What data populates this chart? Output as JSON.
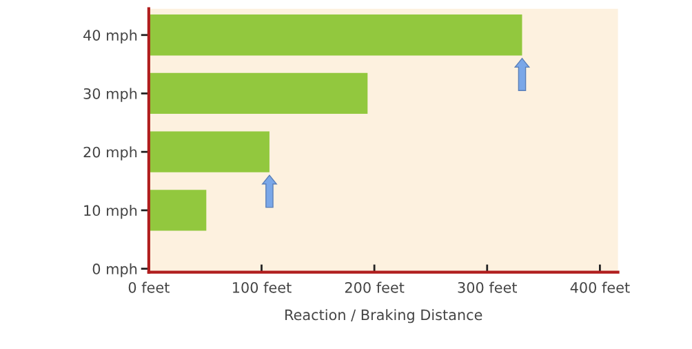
{
  "chart_data": {
    "type": "bar",
    "orientation": "horizontal",
    "xlabel": "Reaction / Braking Distance",
    "categories": [
      "40 mph",
      "30 mph",
      "20 mph",
      "10 mph",
      "0 mph"
    ],
    "values": [
      331,
      194,
      107,
      51,
      0
    ],
    "color": "#92c83e",
    "xlim": [
      0,
      416
    ],
    "xticks": [
      {
        "value": 0,
        "label": "0 feet"
      },
      {
        "value": 100,
        "label": "100 feet"
      },
      {
        "value": 200,
        "label": "200 feet"
      },
      {
        "value": 300,
        "label": "300 feet"
      },
      {
        "value": 400,
        "label": "400 feet"
      }
    ],
    "grid": false,
    "legend": false
  }
}
